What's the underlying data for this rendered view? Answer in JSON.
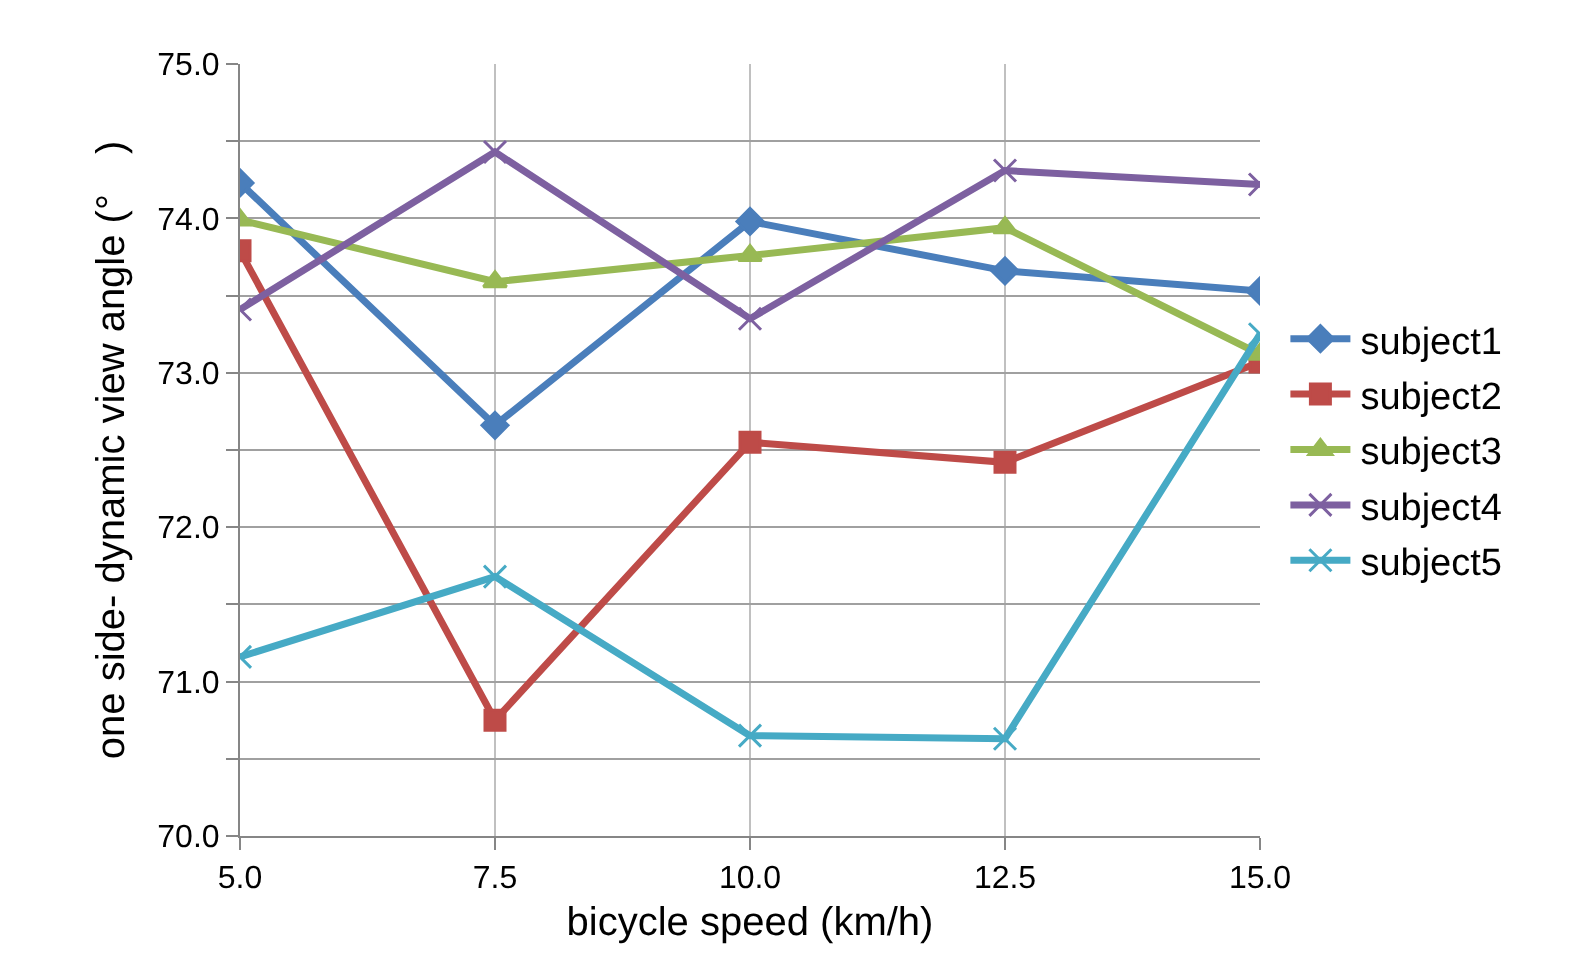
{
  "chart_data": {
    "type": "line",
    "xlabel": "bicycle speed (km/h)",
    "ylabel": "one side- dynamic view angle (°　)",
    "x": [
      5,
      7.5,
      10,
      12.5,
      15
    ],
    "xlim": [
      5,
      15
    ],
    "xticks": [
      {
        "value": 5,
        "label": "5.0"
      },
      {
        "value": 7.5,
        "label": "7.5"
      },
      {
        "value": 10,
        "label": "10.0"
      },
      {
        "value": 12.5,
        "label": "12.5"
      },
      {
        "value": 15,
        "label": "15.0"
      }
    ],
    "ylim": [
      70,
      75
    ],
    "yticks": [
      {
        "value": 70,
        "label": "70.0"
      },
      {
        "value": 70.5,
        "label": null
      },
      {
        "value": 71,
        "label": "71.0"
      },
      {
        "value": 71.5,
        "label": null
      },
      {
        "value": 72,
        "label": "72.0"
      },
      {
        "value": 72.5,
        "label": null
      },
      {
        "value": 73,
        "label": "73.0"
      },
      {
        "value": 73.5,
        "label": null
      },
      {
        "value": 74,
        "label": "74.0"
      },
      {
        "value": 74.5,
        "label": null
      },
      {
        "value": 75,
        "label": "75.0"
      }
    ],
    "grid": true,
    "legend": "right",
    "line_style": "solid",
    "series": [
      {
        "name": "subject1",
        "color": "#4a7ebb",
        "marker": "diamond",
        "values": [
          74.23,
          72.66,
          73.98,
          73.66,
          73.53
        ]
      },
      {
        "name": "subject2",
        "color": "#be4b48",
        "marker": "square",
        "values": [
          73.79,
          70.75,
          72.55,
          72.42,
          73.07
        ]
      },
      {
        "name": "subject3",
        "color": "#98b954",
        "marker": "triangle",
        "values": [
          73.99,
          73.59,
          73.76,
          73.94,
          73.12
        ]
      },
      {
        "name": "subject4",
        "color": "#7d60a0",
        "marker": "cross",
        "values": [
          73.41,
          74.43,
          73.35,
          74.31,
          74.22
        ]
      },
      {
        "name": "subject5",
        "color": "#46aac5",
        "marker": "cross",
        "values": [
          71.16,
          71.68,
          70.65,
          70.63,
          73.25
        ]
      }
    ]
  }
}
